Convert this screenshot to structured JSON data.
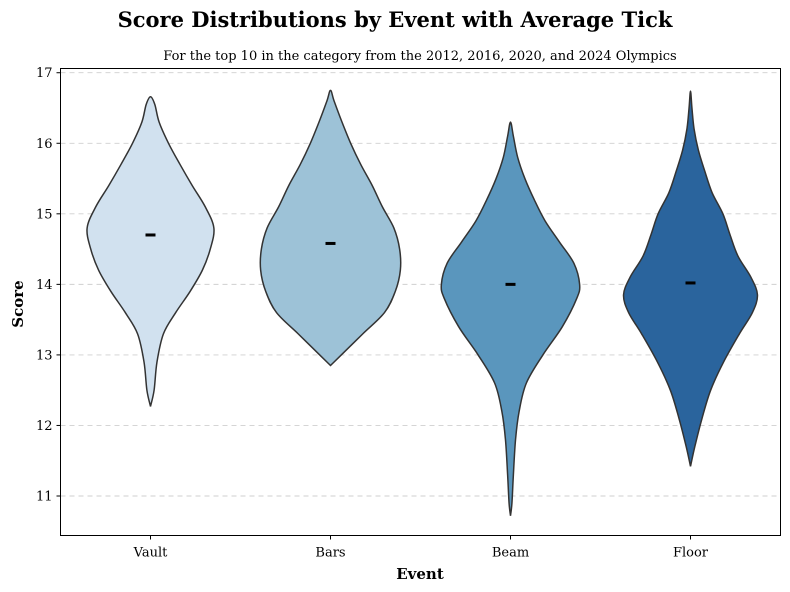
{
  "chart_data": {
    "type": "violin",
    "title": "Score Distributions by Event with Average Tick",
    "subtitle": "For the top 10 in the category from the 2012, 2016, 2020, and 2024 Olympics",
    "xlabel": "Event",
    "ylabel": "Score",
    "categories": [
      "Vault",
      "Bars",
      "Beam",
      "Floor"
    ],
    "ylim": [
      10.44,
      17.06
    ],
    "yticks": [
      11,
      12,
      13,
      14,
      15,
      16,
      17
    ],
    "grid": "y-dashed",
    "series": [
      {
        "category": "Vault",
        "color": "#d1e1ef",
        "mean": 14.7,
        "density": [
          [
            12.27,
            0.0
          ],
          [
            12.5,
            0.05
          ],
          [
            12.9,
            0.09
          ],
          [
            13.3,
            0.18
          ],
          [
            13.6,
            0.35
          ],
          [
            13.9,
            0.55
          ],
          [
            14.2,
            0.72
          ],
          [
            14.5,
            0.83
          ],
          [
            14.8,
            0.88
          ],
          [
            15.1,
            0.76
          ],
          [
            15.4,
            0.58
          ],
          [
            15.7,
            0.41
          ],
          [
            16.0,
            0.25
          ],
          [
            16.3,
            0.12
          ],
          [
            16.55,
            0.06
          ],
          [
            16.66,
            0.0
          ]
        ]
      },
      {
        "category": "Bars",
        "color": "#9dc2d7",
        "mean": 14.58,
        "density": [
          [
            12.85,
            0.0
          ],
          [
            13.0,
            0.15
          ],
          [
            13.3,
            0.45
          ],
          [
            13.6,
            0.75
          ],
          [
            13.9,
            0.9
          ],
          [
            14.2,
            0.97
          ],
          [
            14.5,
            0.96
          ],
          [
            14.8,
            0.88
          ],
          [
            15.1,
            0.72
          ],
          [
            15.4,
            0.58
          ],
          [
            15.7,
            0.42
          ],
          [
            16.0,
            0.28
          ],
          [
            16.3,
            0.16
          ],
          [
            16.6,
            0.05
          ],
          [
            16.75,
            0.0
          ]
        ]
      },
      {
        "category": "Beam",
        "color": "#5a96bd",
        "mean": 14.0,
        "density": [
          [
            10.72,
            0.0
          ],
          [
            10.9,
            0.02
          ],
          [
            11.3,
            0.04
          ],
          [
            11.8,
            0.07
          ],
          [
            12.2,
            0.12
          ],
          [
            12.6,
            0.22
          ],
          [
            13.0,
            0.45
          ],
          [
            13.4,
            0.72
          ],
          [
            13.8,
            0.92
          ],
          [
            14.0,
            0.96
          ],
          [
            14.3,
            0.88
          ],
          [
            14.6,
            0.68
          ],
          [
            14.9,
            0.48
          ],
          [
            15.2,
            0.33
          ],
          [
            15.5,
            0.2
          ],
          [
            15.8,
            0.1
          ],
          [
            16.1,
            0.04
          ],
          [
            16.3,
            0.0
          ]
        ]
      },
      {
        "category": "Floor",
        "color": "#2a649d",
        "mean": 14.02,
        "density": [
          [
            11.42,
            0.0
          ],
          [
            11.7,
            0.06
          ],
          [
            12.1,
            0.16
          ],
          [
            12.5,
            0.28
          ],
          [
            12.9,
            0.46
          ],
          [
            13.3,
            0.68
          ],
          [
            13.6,
            0.86
          ],
          [
            13.85,
            0.93
          ],
          [
            14.1,
            0.84
          ],
          [
            14.4,
            0.66
          ],
          [
            14.7,
            0.55
          ],
          [
            15.0,
            0.45
          ],
          [
            15.3,
            0.3
          ],
          [
            15.6,
            0.2
          ],
          [
            15.9,
            0.11
          ],
          [
            16.2,
            0.05
          ],
          [
            16.5,
            0.02
          ],
          [
            16.74,
            0.0
          ]
        ]
      }
    ]
  }
}
